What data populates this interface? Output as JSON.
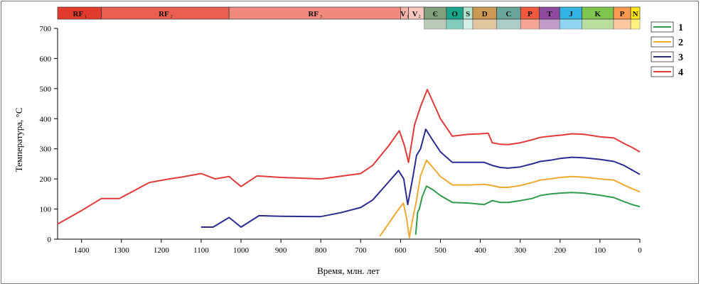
{
  "chart_data": {
    "type": "line",
    "xlabel": "Время, млн. лет",
    "ylabel": "Температура, °C",
    "xlim": [
      1460,
      0
    ],
    "ylim": [
      0,
      700
    ],
    "x_reversed": true,
    "xticks": [
      1400,
      1300,
      1200,
      1100,
      1000,
      900,
      800,
      700,
      600,
      500,
      400,
      300,
      200,
      100,
      0
    ],
    "yticks": [
      0,
      100,
      200,
      300,
      400,
      500,
      600,
      700
    ],
    "grid": false,
    "legend_position": "right",
    "series": [
      {
        "name": "1",
        "color": "#2e9a4a",
        "points": [
          [
            562,
            15
          ],
          [
            557,
            90
          ],
          [
            553,
            100
          ],
          [
            546,
            140
          ],
          [
            540,
            160
          ],
          [
            535,
            176
          ],
          [
            520,
            165
          ],
          [
            500,
            145
          ],
          [
            470,
            122
          ],
          [
            430,
            120
          ],
          [
            390,
            115
          ],
          [
            370,
            128
          ],
          [
            350,
            122
          ],
          [
            330,
            122
          ],
          [
            300,
            128
          ],
          [
            270,
            135
          ],
          [
            250,
            145
          ],
          [
            225,
            150
          ],
          [
            200,
            153
          ],
          [
            170,
            155
          ],
          [
            140,
            153
          ],
          [
            100,
            146
          ],
          [
            65,
            138
          ],
          [
            40,
            125
          ],
          [
            20,
            115
          ],
          [
            0,
            108
          ]
        ]
      },
      {
        "name": "2",
        "color": "#f0a830",
        "points": [
          [
            652,
            10
          ],
          [
            610,
            90
          ],
          [
            593,
            120
          ],
          [
            585,
            70
          ],
          [
            578,
            5
          ],
          [
            570,
            65
          ],
          [
            560,
            130
          ],
          [
            550,
            210
          ],
          [
            535,
            262
          ],
          [
            515,
            232
          ],
          [
            500,
            208
          ],
          [
            470,
            180
          ],
          [
            430,
            180
          ],
          [
            390,
            182
          ],
          [
            370,
            178
          ],
          [
            350,
            172
          ],
          [
            330,
            172
          ],
          [
            300,
            178
          ],
          [
            270,
            188
          ],
          [
            250,
            196
          ],
          [
            225,
            200
          ],
          [
            200,
            205
          ],
          [
            170,
            208
          ],
          [
            140,
            206
          ],
          [
            100,
            200
          ],
          [
            65,
            196
          ],
          [
            40,
            180
          ],
          [
            20,
            168
          ],
          [
            0,
            157
          ]
        ]
      },
      {
        "name": "3",
        "color": "#2b2b8f",
        "points": [
          [
            1100,
            40
          ],
          [
            1070,
            40
          ],
          [
            1030,
            72
          ],
          [
            1000,
            40
          ],
          [
            955,
            78
          ],
          [
            900,
            76
          ],
          [
            800,
            75
          ],
          [
            750,
            88
          ],
          [
            700,
            105
          ],
          [
            670,
            130
          ],
          [
            630,
            190
          ],
          [
            605,
            228
          ],
          [
            592,
            200
          ],
          [
            582,
            115
          ],
          [
            570,
            200
          ],
          [
            560,
            278
          ],
          [
            550,
            300
          ],
          [
            537,
            365
          ],
          [
            520,
            330
          ],
          [
            500,
            290
          ],
          [
            470,
            255
          ],
          [
            430,
            255
          ],
          [
            390,
            255
          ],
          [
            370,
            245
          ],
          [
            350,
            238
          ],
          [
            330,
            236
          ],
          [
            300,
            240
          ],
          [
            270,
            250
          ],
          [
            250,
            258
          ],
          [
            225,
            262
          ],
          [
            200,
            268
          ],
          [
            170,
            272
          ],
          [
            140,
            270
          ],
          [
            100,
            265
          ],
          [
            65,
            258
          ],
          [
            40,
            245
          ],
          [
            20,
            230
          ],
          [
            0,
            215
          ]
        ]
      },
      {
        "name": "4",
        "color": "#e03a3a",
        "points": [
          [
            1460,
            50
          ],
          [
            1400,
            95
          ],
          [
            1350,
            135
          ],
          [
            1305,
            135
          ],
          [
            1230,
            188
          ],
          [
            1180,
            200
          ],
          [
            1150,
            206
          ],
          [
            1100,
            218
          ],
          [
            1065,
            200
          ],
          [
            1030,
            208
          ],
          [
            1000,
            175
          ],
          [
            960,
            210
          ],
          [
            900,
            205
          ],
          [
            800,
            200
          ],
          [
            700,
            218
          ],
          [
            670,
            245
          ],
          [
            630,
            310
          ],
          [
            603,
            360
          ],
          [
            590,
            310
          ],
          [
            580,
            255
          ],
          [
            565,
            380
          ],
          [
            550,
            440
          ],
          [
            533,
            497
          ],
          [
            510,
            430
          ],
          [
            500,
            400
          ],
          [
            470,
            342
          ],
          [
            430,
            348
          ],
          [
            400,
            350
          ],
          [
            380,
            352
          ],
          [
            370,
            320
          ],
          [
            350,
            315
          ],
          [
            330,
            314
          ],
          [
            300,
            320
          ],
          [
            270,
            330
          ],
          [
            250,
            338
          ],
          [
            225,
            342
          ],
          [
            200,
            345
          ],
          [
            170,
            350
          ],
          [
            140,
            348
          ],
          [
            100,
            340
          ],
          [
            65,
            336
          ],
          [
            40,
            318
          ],
          [
            20,
            305
          ],
          [
            0,
            290
          ]
        ]
      }
    ],
    "timescale": [
      {
        "label": "RF",
        "sub": "1",
        "start": 1460,
        "end": 1350,
        "color": "#e13b2d"
      },
      {
        "label": "RF",
        "sub": "2",
        "start": 1350,
        "end": 1030,
        "color": "#ea5e50"
      },
      {
        "label": "RF",
        "sub": "3",
        "start": 1030,
        "end": 600,
        "color": "#f08a7e"
      },
      {
        "label": "V",
        "sub": "1",
        "start": 600,
        "end": 580,
        "color": "#f5b3ab"
      },
      {
        "label": "V",
        "sub": "2",
        "start": 580,
        "end": 541,
        "color": "#f7c7c0"
      },
      {
        "label": "Є",
        "sub": "",
        "start": 541,
        "end": 485,
        "color": "#7fa07a"
      },
      {
        "label": "O",
        "sub": "",
        "start": 485,
        "end": 443,
        "color": "#19a58c"
      },
      {
        "label": "S",
        "sub": "",
        "start": 443,
        "end": 419,
        "color": "#b3e2cf"
      },
      {
        "label": "D",
        "sub": "",
        "start": 419,
        "end": 359,
        "color": "#cc9955"
      },
      {
        "label": "C",
        "sub": "",
        "start": 359,
        "end": 299,
        "color": "#67a59b"
      },
      {
        "label": "P",
        "sub": "",
        "start": 299,
        "end": 252,
        "color": "#ef5a3e"
      },
      {
        "label": "T",
        "sub": "",
        "start": 252,
        "end": 201,
        "color": "#8f4aa0"
      },
      {
        "label": "J",
        "sub": "",
        "start": 201,
        "end": 145,
        "color": "#34b2e4"
      },
      {
        "label": "K",
        "sub": "",
        "start": 145,
        "end": 66,
        "color": "#7fc64e"
      },
      {
        "label": "P",
        "sub": "",
        "start": 66,
        "end": 23,
        "color": "#fd9a52"
      },
      {
        "label": "N",
        "sub": "",
        "start": 23,
        "end": 0,
        "color": "#ffe619"
      }
    ]
  }
}
